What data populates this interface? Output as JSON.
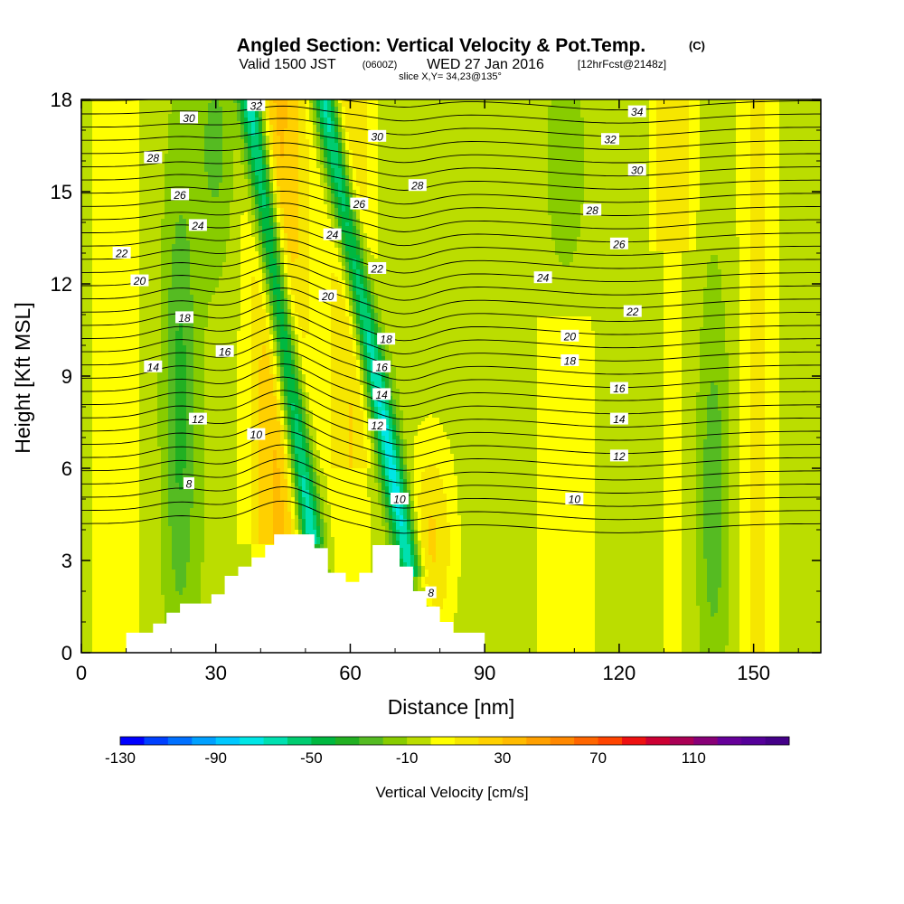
{
  "title": {
    "main": "Angled Section: Vertical Velocity & Pot.Temp.",
    "unit": "(C)",
    "valid_prefix": "Valid 1500 JST",
    "valid_zulu": "(0600Z)",
    "valid_date": "WED 27 Jan 2016",
    "forecast": "[12hrFcst@2148z]",
    "slice": "slice X,Y= 34,23@135°"
  },
  "chart_data": {
    "type": "heatmap",
    "xlabel": "Distance [nm]",
    "ylabel": "Height [Kft MSL]",
    "xlim": [
      0,
      165
    ],
    "ylim": [
      0,
      18
    ],
    "x_ticks": [
      0,
      30,
      60,
      90,
      120,
      150
    ],
    "y_ticks": [
      0,
      3,
      6,
      9,
      12,
      15,
      18
    ],
    "grid": false,
    "colorbar": {
      "label": "Vertical Velocity [cm/s]",
      "min": -130,
      "max": 150,
      "step": 10,
      "tick_labels": [
        "-130",
        "-90",
        "-50",
        "-10",
        "30",
        "70",
        "110"
      ],
      "tick_values": [
        -130,
        -90,
        -50,
        -10,
        30,
        70,
        110
      ],
      "colors": [
        "#0000ff",
        "#0040ff",
        "#0070ff",
        "#00a0ff",
        "#00c8ff",
        "#00e6e6",
        "#00e0b0",
        "#00cc70",
        "#00b840",
        "#22b022",
        "#55bb22",
        "#88cc00",
        "#bbdd00",
        "#ffff00",
        "#f6e600",
        "#ffd000",
        "#ffbb00",
        "#ffa000",
        "#ff8800",
        "#ff6600",
        "#ff4400",
        "#ee1111",
        "#cc0033",
        "#aa0055",
        "#880077",
        "#660099",
        "#550099",
        "#440088"
      ]
    },
    "terrain_kft": [
      [
        0,
        0.0
      ],
      [
        10,
        0.0
      ],
      [
        10,
        0.65
      ],
      [
        16,
        0.65
      ],
      [
        16,
        0.95
      ],
      [
        19,
        0.95
      ],
      [
        19,
        1.3
      ],
      [
        22,
        1.3
      ],
      [
        22,
        1.6
      ],
      [
        29,
        1.6
      ],
      [
        29,
        1.9
      ],
      [
        32,
        1.9
      ],
      [
        32,
        2.5
      ],
      [
        35,
        2.5
      ],
      [
        35,
        2.8
      ],
      [
        38,
        2.8
      ],
      [
        38,
        3.1
      ],
      [
        41,
        3.1
      ],
      [
        41,
        3.5
      ],
      [
        43,
        3.5
      ],
      [
        43,
        3.85
      ],
      [
        52,
        3.85
      ],
      [
        52,
        3.4
      ],
      [
        55,
        3.4
      ],
      [
        55,
        2.6
      ],
      [
        59,
        2.6
      ],
      [
        59,
        2.3
      ],
      [
        62,
        2.3
      ],
      [
        62,
        2.6
      ],
      [
        65,
        2.6
      ],
      [
        65,
        3.5
      ],
      [
        71,
        3.5
      ],
      [
        71,
        2.8
      ],
      [
        74,
        2.8
      ],
      [
        74,
        2.0
      ],
      [
        77,
        2.0
      ],
      [
        77,
        1.5
      ],
      [
        80,
        1.5
      ],
      [
        80,
        1.0
      ],
      [
        83,
        1.0
      ],
      [
        83,
        0.65
      ],
      [
        90,
        0.65
      ],
      [
        90,
        0.0
      ]
    ],
    "theta_labels": [
      {
        "x": 24,
        "y": 17.4,
        "text": "30"
      },
      {
        "x": 39,
        "y": 17.8,
        "text": "32"
      },
      {
        "x": 66,
        "y": 16.8,
        "text": "30"
      },
      {
        "x": 124,
        "y": 17.6,
        "text": "34"
      },
      {
        "x": 118,
        "y": 16.7,
        "text": "32"
      },
      {
        "x": 16,
        "y": 16.1,
        "text": "28"
      },
      {
        "x": 75,
        "y": 15.2,
        "text": "28"
      },
      {
        "x": 124,
        "y": 15.7,
        "text": "30"
      },
      {
        "x": 22,
        "y": 14.9,
        "text": "26"
      },
      {
        "x": 62,
        "y": 14.6,
        "text": "26"
      },
      {
        "x": 114,
        "y": 14.4,
        "text": "28"
      },
      {
        "x": 26,
        "y": 13.9,
        "text": "24"
      },
      {
        "x": 56,
        "y": 13.6,
        "text": "24"
      },
      {
        "x": 120,
        "y": 13.3,
        "text": "26"
      },
      {
        "x": 9,
        "y": 13.0,
        "text": "22"
      },
      {
        "x": 66,
        "y": 12.5,
        "text": "22"
      },
      {
        "x": 103,
        "y": 12.2,
        "text": "24"
      },
      {
        "x": 13,
        "y": 12.1,
        "text": "20"
      },
      {
        "x": 55,
        "y": 11.6,
        "text": "20"
      },
      {
        "x": 123,
        "y": 11.1,
        "text": "22"
      },
      {
        "x": 23,
        "y": 10.9,
        "text": "18"
      },
      {
        "x": 109,
        "y": 10.3,
        "text": "20"
      },
      {
        "x": 68,
        "y": 10.2,
        "text": "18"
      },
      {
        "x": 32,
        "y": 9.8,
        "text": "16"
      },
      {
        "x": 109,
        "y": 9.5,
        "text": "18"
      },
      {
        "x": 67,
        "y": 9.3,
        "text": "16"
      },
      {
        "x": 16,
        "y": 9.3,
        "text": "14"
      },
      {
        "x": 67,
        "y": 8.4,
        "text": "14"
      },
      {
        "x": 120,
        "y": 8.6,
        "text": "16"
      },
      {
        "x": 26,
        "y": 7.6,
        "text": "12"
      },
      {
        "x": 66,
        "y": 7.4,
        "text": "12"
      },
      {
        "x": 120,
        "y": 7.6,
        "text": "14"
      },
      {
        "x": 39,
        "y": 7.1,
        "text": "10"
      },
      {
        "x": 120,
        "y": 6.4,
        "text": "12"
      },
      {
        "x": 24,
        "y": 5.5,
        "text": "8"
      },
      {
        "x": 71,
        "y": 5.0,
        "text": "10"
      },
      {
        "x": 110,
        "y": 5.0,
        "text": "10"
      },
      {
        "x": 78,
        "y": 1.95,
        "text": "8"
      }
    ]
  }
}
